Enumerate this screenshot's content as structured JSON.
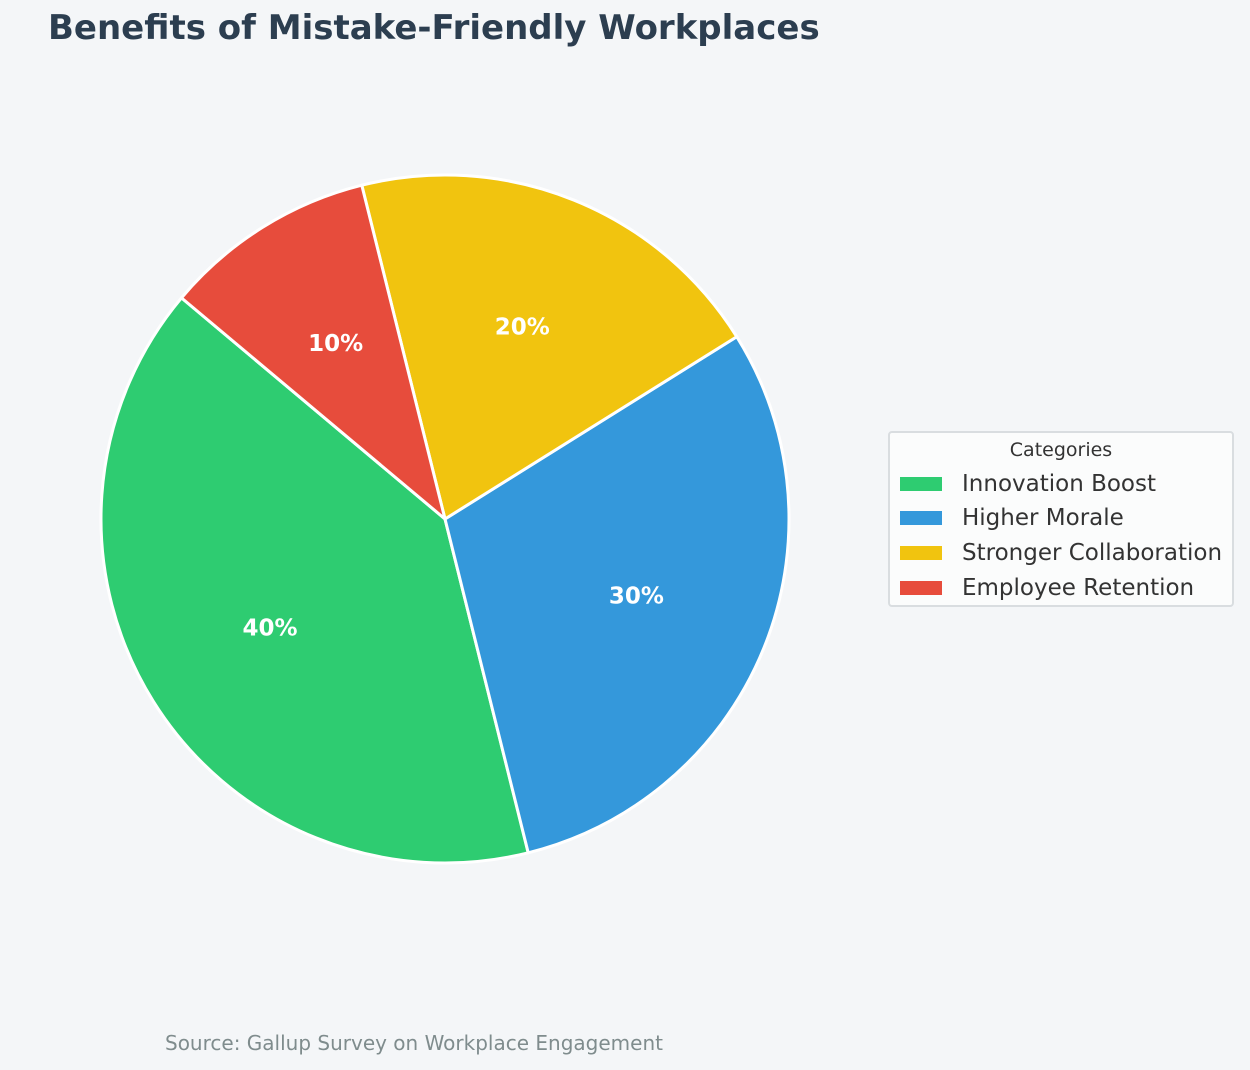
{
  "chart_data": {
    "type": "pie",
    "title": "Benefits of Mistake-Friendly Workplaces",
    "categories": [
      "Innovation Boost",
      "Higher Morale",
      "Stronger Collaboration",
      "Employee Retention"
    ],
    "values": [
      40,
      30,
      20,
      10
    ],
    "value_labels": [
      "40%",
      "30%",
      "20%",
      "10%"
    ],
    "colors": [
      "#2ecc71",
      "#3498db",
      "#f1c40f",
      "#e74c3c"
    ],
    "start_angle_deg": 140,
    "direction": "counterclockwise",
    "legend": {
      "title": "Categories",
      "placement": "right"
    },
    "source": "Source: Gallup Survey on Workplace Engagement"
  }
}
